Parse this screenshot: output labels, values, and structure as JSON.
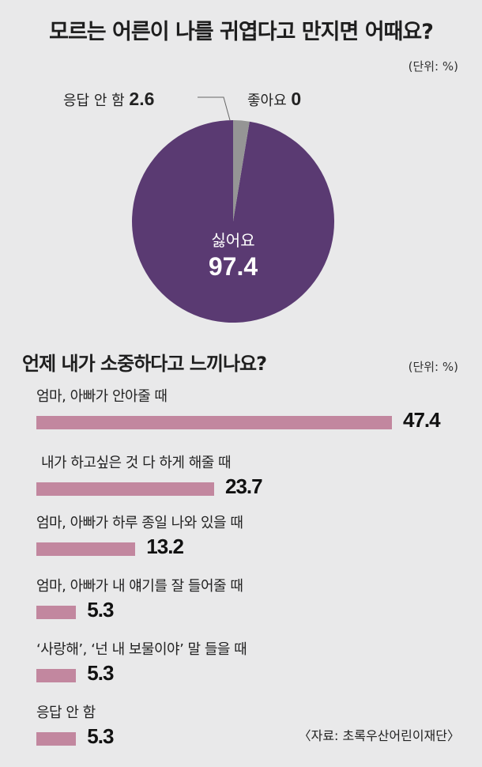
{
  "chart_data": [
    {
      "type": "pie",
      "title": "모르는 어른이 나를 귀엽다고 만지면 어때요?",
      "unit": "(단위: %)",
      "slices": [
        {
          "label": "싫어요",
          "value": 97.4,
          "value_text": "97.4",
          "color": "#5a3a72"
        },
        {
          "label": "응답 안 함",
          "value": 2.6,
          "value_text": "2.6",
          "color": "#959595"
        },
        {
          "label": "좋아요",
          "value": 0,
          "value_text": "0",
          "color": "#e9e9ea"
        }
      ]
    },
    {
      "type": "bar",
      "orientation": "horizontal",
      "title": "언제 내가 소중하다고 느끼나요?",
      "unit": "(단위: %)",
      "color": "#c2879f",
      "categories": [
        "엄마, 아빠가 안아줄 때",
        "내가 하고싶은 것 다 하게 해줄 때",
        "엄마, 아빠가 하루 종일 나와 있을 때",
        "엄마, 아빠가 내 얘기를 잘 들어줄 때",
        "‘사랑해’, ‘넌 내 보물이야’ 말 들을 때",
        "응답 안 함"
      ],
      "values": [
        47.4,
        23.7,
        13.2,
        5.3,
        5.3,
        5.3
      ],
      "value_texts": [
        "47.4",
        "23.7",
        "13.2",
        "5.3",
        "5.3",
        "5.3"
      ]
    }
  ],
  "source": "〈자료: 초록우산어린이재단〉"
}
